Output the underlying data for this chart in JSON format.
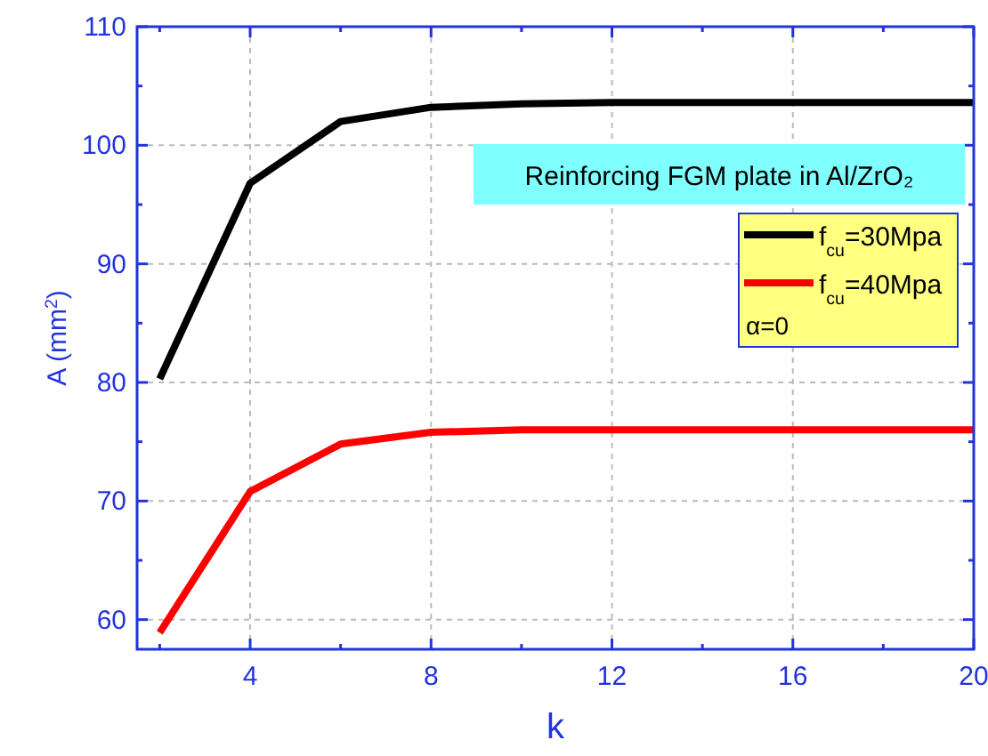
{
  "chart_data": {
    "type": "line",
    "xlabel": "k",
    "ylabel": "A (mm$^{2}$)",
    "x": [
      2,
      4,
      6,
      8,
      10,
      12,
      14,
      16,
      18,
      20
    ],
    "series": [
      {
        "name": "f$_{cu}$=30Mpa",
        "color": "#000000",
        "values": [
          80.3,
          96.8,
          102.0,
          103.2,
          103.5,
          103.6,
          103.6,
          103.6,
          103.6,
          103.6
        ]
      },
      {
        "name": "f$_{cu}$=40Mpa",
        "color": "#ff0000",
        "values": [
          58.9,
          70.8,
          74.8,
          75.8,
          76.0,
          76.0,
          76.0,
          76.0,
          76.0,
          76.0
        ]
      }
    ],
    "xlim": [
      1.5,
      20
    ],
    "ylim": [
      57.5,
      110
    ],
    "xticks": [
      {
        "value": 2,
        "label": null
      },
      4,
      {
        "value": 6,
        "label": null
      },
      8,
      {
        "value": 10,
        "label": null
      },
      12,
      {
        "value": 14,
        "label": null
      },
      16,
      {
        "value": 18,
        "label": null
      },
      20
    ],
    "yticks": [
      60,
      {
        "value": 65,
        "label": null
      },
      70,
      {
        "value": 75,
        "label": null
      },
      80,
      {
        "value": 85,
        "label": null
      },
      90,
      {
        "value": 95,
        "label": null
      },
      100,
      {
        "value": 105,
        "label": null
      },
      110
    ],
    "grid": true,
    "legend": "right",
    "marker": "none",
    "line_style": "solid",
    "annotations": [
      "Reinforcing FGM plate in Al/ZrO₂",
      "α=0"
    ]
  }
}
